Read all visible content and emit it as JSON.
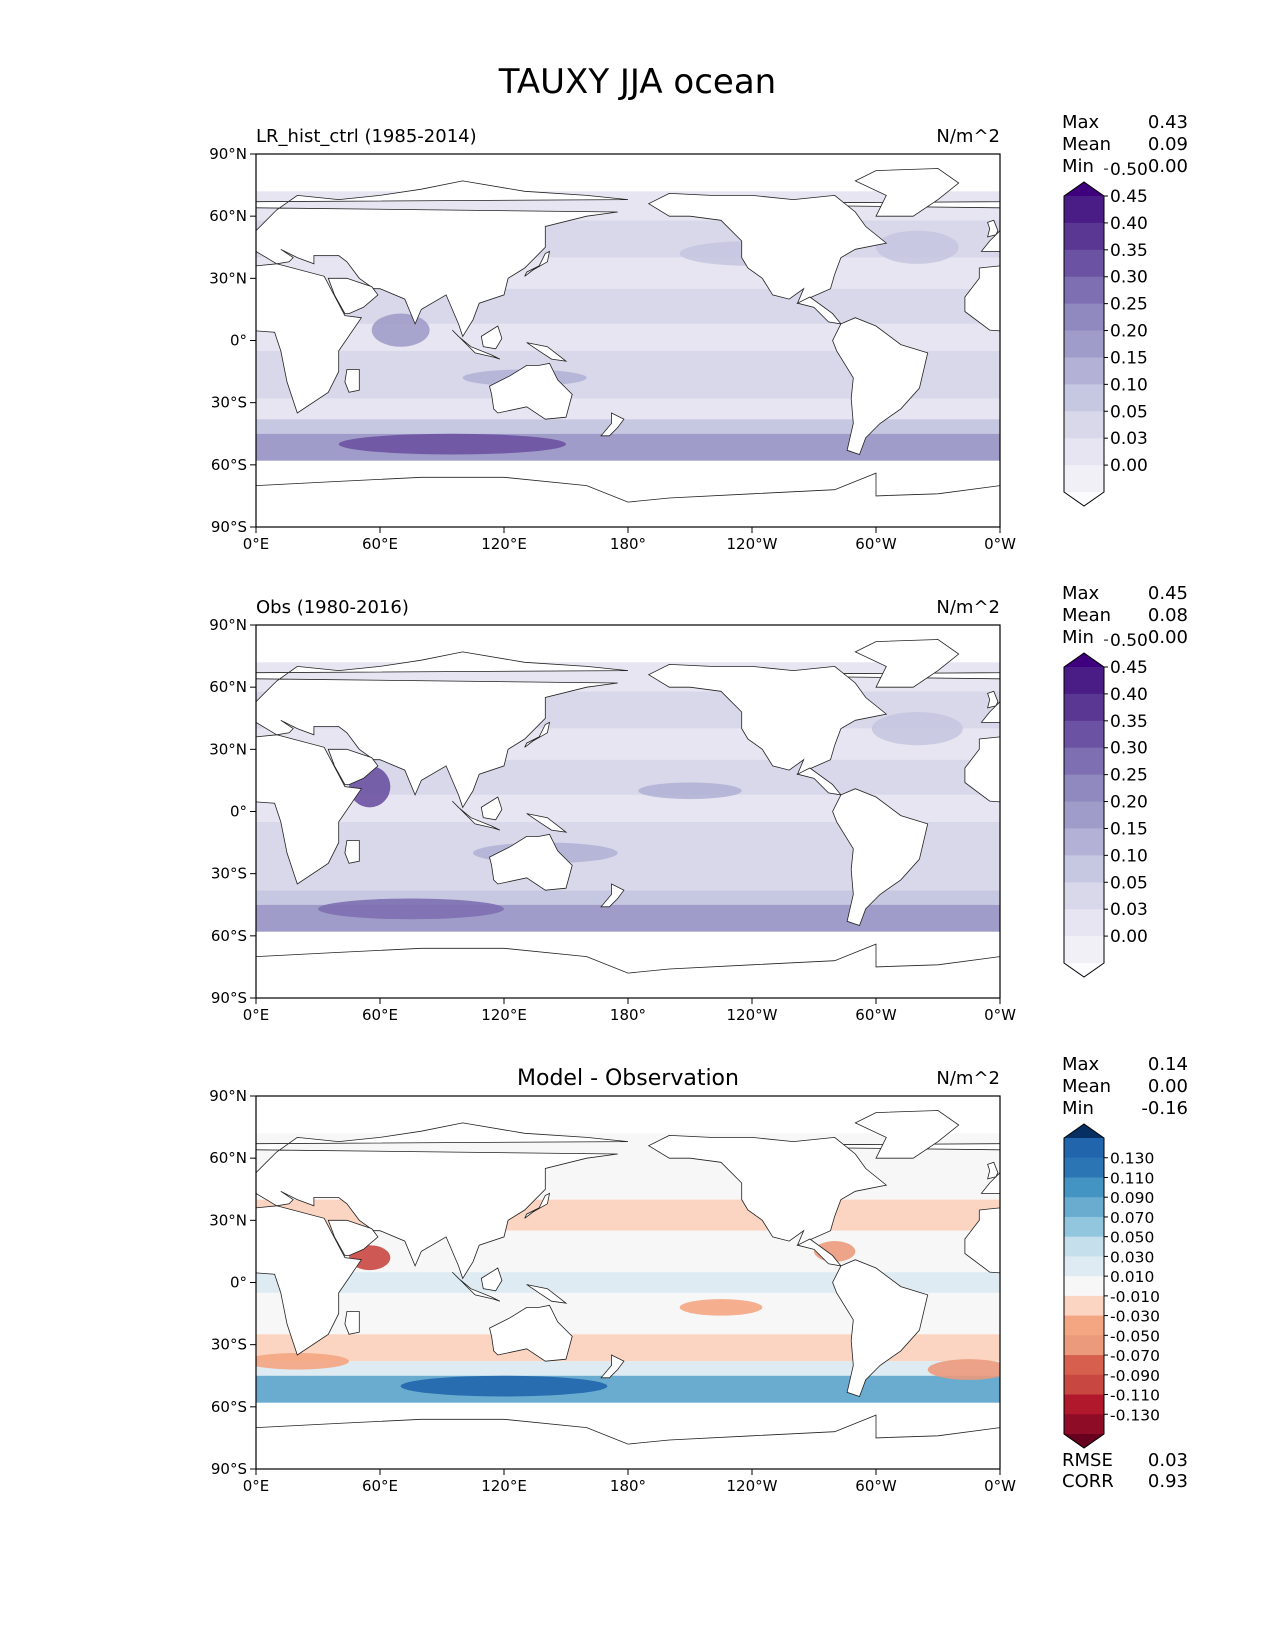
{
  "figure": {
    "title": "TAUXY JJA ocean"
  },
  "chart_data": [
    {
      "type": "heatmap",
      "title": "LR_hist_ctrl (1985-2014)",
      "units": "N/m^2",
      "x_ticks": [
        "0°E",
        "60°E",
        "120°E",
        "180°",
        "120°W",
        "60°W",
        "0°W"
      ],
      "y_ticks": [
        "90°N",
        "60°N",
        "30°N",
        "0°",
        "30°S",
        "60°S",
        "90°S"
      ],
      "xlim": [
        0,
        360
      ],
      "ylim": [
        -90,
        90
      ],
      "stats": [
        {
          "label": "Max",
          "value": "0.43"
        },
        {
          "label": "Mean",
          "value": "0.09"
        },
        {
          "label": "Min",
          "value": "0.00"
        }
      ],
      "colorbar": {
        "labels": [
          "0.00",
          "0.03",
          "0.05",
          "0.10",
          "0.15",
          "0.20",
          "0.25",
          "0.30",
          "0.35",
          "0.40",
          "0.45",
          "0.50"
        ],
        "colors": [
          "#fcfbfd",
          "#f2f0f7",
          "#e6e5f1",
          "#d8d8ea",
          "#c6c7e1",
          "#b3b2d6",
          "#a09cc9",
          "#8f89c0",
          "#7d6fb1",
          "#6b52a2",
          "#5b3794",
          "#4a1c86",
          "#3f007d"
        ]
      },
      "field": {
        "colors": [
          "#fcfbfd",
          "#f2f0f7",
          "#e6e5f1",
          "#d8d8ea",
          "#c6c7e1",
          "#b3b2d6",
          "#a09cc9",
          "#8f89c0",
          "#7d6fb1",
          "#6b52a2",
          "#5b3794",
          "#4a1c86",
          "#3f007d"
        ],
        "rows": [
          {
            "lat_min": 58,
            "lat_max": 72,
            "level": 2
          },
          {
            "lat_min": 40,
            "lat_max": 58,
            "level": 3
          },
          {
            "lat_min": 25,
            "lat_max": 40,
            "level": 2
          },
          {
            "lat_min": 8,
            "lat_max": 25,
            "level": 3
          },
          {
            "lat_min": -5,
            "lat_max": 8,
            "level": 2
          },
          {
            "lat_min": -28,
            "lat_max": -5,
            "level": 3
          },
          {
            "lat_min": -38,
            "lat_max": -28,
            "level": 2
          },
          {
            "lat_min": -45,
            "lat_max": -38,
            "level": 4
          },
          {
            "lat_min": -58,
            "lat_max": -45,
            "level": 6
          }
        ],
        "blobs": [
          {
            "lon": 95,
            "lat": -50,
            "dlon": 55,
            "dlat": 5,
            "level": 9
          },
          {
            "lon": 70,
            "lat": 5,
            "dlon": 14,
            "dlat": 8,
            "level": 6
          },
          {
            "lon": 130,
            "lat": -18,
            "dlon": 30,
            "dlat": 4,
            "level": 5
          },
          {
            "lon": 240,
            "lat": 42,
            "dlon": 35,
            "dlat": 6,
            "level": 4
          },
          {
            "lon": 320,
            "lat": 45,
            "dlon": 20,
            "dlat": 8,
            "level": 4
          }
        ]
      }
    },
    {
      "type": "heatmap",
      "title": "Obs (1980-2016)",
      "units": "N/m^2",
      "x_ticks": [
        "0°E",
        "60°E",
        "120°E",
        "180°",
        "120°W",
        "60°W",
        "0°W"
      ],
      "y_ticks": [
        "90°N",
        "60°N",
        "30°N",
        "0°",
        "30°S",
        "60°S",
        "90°S"
      ],
      "xlim": [
        0,
        360
      ],
      "ylim": [
        -90,
        90
      ],
      "stats": [
        {
          "label": "Max",
          "value": "0.45"
        },
        {
          "label": "Mean",
          "value": "0.08"
        },
        {
          "label": "Min",
          "value": "0.00"
        }
      ],
      "colorbar": {
        "labels": [
          "0.00",
          "0.03",
          "0.05",
          "0.10",
          "0.15",
          "0.20",
          "0.25",
          "0.30",
          "0.35",
          "0.40",
          "0.45",
          "0.50"
        ],
        "colors": [
          "#fcfbfd",
          "#f2f0f7",
          "#e6e5f1",
          "#d8d8ea",
          "#c6c7e1",
          "#b3b2d6",
          "#a09cc9",
          "#8f89c0",
          "#7d6fb1",
          "#6b52a2",
          "#5b3794",
          "#4a1c86",
          "#3f007d"
        ]
      },
      "field": {
        "colors": [
          "#fcfbfd",
          "#f2f0f7",
          "#e6e5f1",
          "#d8d8ea",
          "#c6c7e1",
          "#b3b2d6",
          "#a09cc9",
          "#8f89c0",
          "#7d6fb1",
          "#6b52a2",
          "#5b3794",
          "#4a1c86",
          "#3f007d"
        ],
        "rows": [
          {
            "lat_min": 58,
            "lat_max": 72,
            "level": 2
          },
          {
            "lat_min": 40,
            "lat_max": 58,
            "level": 3
          },
          {
            "lat_min": 25,
            "lat_max": 40,
            "level": 2
          },
          {
            "lat_min": 8,
            "lat_max": 25,
            "level": 3
          },
          {
            "lat_min": -5,
            "lat_max": 8,
            "level": 2
          },
          {
            "lat_min": -28,
            "lat_max": -5,
            "level": 3
          },
          {
            "lat_min": -38,
            "lat_max": -28,
            "level": 3
          },
          {
            "lat_min": -45,
            "lat_max": -38,
            "level": 4
          },
          {
            "lat_min": -58,
            "lat_max": -45,
            "level": 6
          }
        ],
        "blobs": [
          {
            "lon": 75,
            "lat": -47,
            "dlon": 45,
            "dlat": 5,
            "level": 8
          },
          {
            "lon": 55,
            "lat": 12,
            "dlon": 10,
            "dlat": 10,
            "level": 9
          },
          {
            "lon": 210,
            "lat": 10,
            "dlon": 25,
            "dlat": 4,
            "level": 5
          },
          {
            "lon": 140,
            "lat": -20,
            "dlon": 35,
            "dlat": 5,
            "level": 5
          },
          {
            "lon": 320,
            "lat": 40,
            "dlon": 22,
            "dlat": 8,
            "level": 4
          }
        ]
      }
    },
    {
      "type": "heatmap",
      "title": "Model - Observation",
      "units": "N/m^2",
      "x_ticks": [
        "0°E",
        "60°E",
        "120°E",
        "180°",
        "120°W",
        "60°W",
        "0°W"
      ],
      "y_ticks": [
        "90°N",
        "60°N",
        "30°N",
        "0°",
        "30°S",
        "60°S",
        "90°S"
      ],
      "xlim": [
        0,
        360
      ],
      "ylim": [
        -90,
        90
      ],
      "stats": [
        {
          "label": "Max",
          "value": "0.14"
        },
        {
          "label": "Mean",
          "value": "0.00"
        },
        {
          "label": "Min",
          "value": "-0.16"
        }
      ],
      "metrics": [
        {
          "label": "RMSE",
          "value": "0.03"
        },
        {
          "label": "CORR",
          "value": "0.93"
        }
      ],
      "colorbar": {
        "labels": [
          "-0.130",
          "-0.110",
          "-0.090",
          "-0.070",
          "-0.050",
          "-0.030",
          "-0.010",
          "0.010",
          "0.030",
          "0.050",
          "0.070",
          "0.090",
          "0.110",
          "0.130"
        ],
        "colors": [
          "#67001f",
          "#8e0c25",
          "#b2182b",
          "#c94741",
          "#d6604d",
          "#ec9a7c",
          "#f4a582",
          "#fbd5c1",
          "#f7f7f7",
          "#deebf2",
          "#c5dfec",
          "#92c5de",
          "#6aacd0",
          "#4393c3",
          "#2c75b5",
          "#2166ac",
          "#053061"
        ]
      },
      "field": {
        "colors": [
          "#67001f",
          "#8e0c25",
          "#b2182b",
          "#c94741",
          "#d6604d",
          "#ec9a7c",
          "#f4a582",
          "#fbd5c1",
          "#f7f7f7",
          "#deebf2",
          "#c5dfec",
          "#92c5de",
          "#6aacd0",
          "#4393c3",
          "#2c75b5",
          "#2166ac",
          "#053061"
        ],
        "rows": [
          {
            "lat_min": 58,
            "lat_max": 72,
            "level": 8
          },
          {
            "lat_min": 40,
            "lat_max": 58,
            "level": 8
          },
          {
            "lat_min": 25,
            "lat_max": 40,
            "level": 7
          },
          {
            "lat_min": 5,
            "lat_max": 25,
            "level": 8
          },
          {
            "lat_min": -5,
            "lat_max": 5,
            "level": 9
          },
          {
            "lat_min": -25,
            "lat_max": -5,
            "level": 8
          },
          {
            "lat_min": -38,
            "lat_max": -25,
            "level": 7
          },
          {
            "lat_min": -45,
            "lat_max": -38,
            "level": 9
          },
          {
            "lat_min": -58,
            "lat_max": -45,
            "level": 12
          }
        ],
        "blobs": [
          {
            "lon": 120,
            "lat": -50,
            "dlon": 50,
            "dlat": 5,
            "level": 15
          },
          {
            "lon": 55,
            "lat": 12,
            "dlon": 10,
            "dlat": 6,
            "level": 3
          },
          {
            "lon": 225,
            "lat": -12,
            "dlon": 20,
            "dlat": 4,
            "level": 6
          },
          {
            "lon": 345,
            "lat": -42,
            "dlon": 20,
            "dlat": 5,
            "level": 5
          },
          {
            "lon": 20,
            "lat": -38,
            "dlon": 25,
            "dlat": 4,
            "level": 6
          },
          {
            "lon": 280,
            "lat": 15,
            "dlon": 10,
            "dlat": 5,
            "level": 5
          }
        ]
      }
    }
  ]
}
